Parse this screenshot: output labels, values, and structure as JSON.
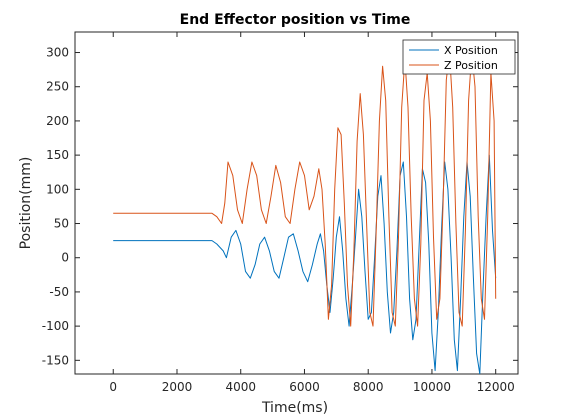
{
  "chart_data": {
    "type": "line",
    "title": "End Effector position vs Time",
    "xlabel": "Time(ms)",
    "ylabel": "Position(mm)",
    "xlim": [
      -1200,
      12700
    ],
    "ylim": [
      -170,
      330
    ],
    "xticks": [
      0,
      2000,
      4000,
      6000,
      8000,
      10000,
      12000
    ],
    "yticks": [
      -150,
      -100,
      -50,
      0,
      50,
      100,
      150,
      200,
      250,
      300
    ],
    "grid": false,
    "legend_position": "top-right",
    "series": [
      {
        "name": "X Position",
        "color": "#0072BD",
        "x": [
          0,
          3100,
          3250,
          3450,
          3550,
          3700,
          3850,
          4000,
          4150,
          4300,
          4450,
          4600,
          4750,
          4900,
          5050,
          5200,
          5350,
          5500,
          5650,
          5800,
          5950,
          6100,
          6250,
          6400,
          6500,
          6600,
          6700,
          6800,
          6900,
          7000,
          7100,
          7200,
          7300,
          7400,
          7500,
          7600,
          7700,
          7800,
          7900,
          8000,
          8100,
          8200,
          8300,
          8400,
          8500,
          8600,
          8700,
          8800,
          8900,
          9000,
          9100,
          9200,
          9300,
          9400,
          9500,
          9600,
          9700,
          9800,
          9900,
          10000,
          10100,
          10200,
          10300,
          10400,
          10500,
          10600,
          10700,
          10800,
          10900,
          11000,
          11100,
          11200,
          11300,
          11400,
          11500,
          11600,
          11700,
          11800,
          11900,
          12000
        ],
        "y": [
          25,
          25,
          20,
          10,
          0,
          30,
          40,
          20,
          -20,
          -30,
          -10,
          20,
          30,
          10,
          -20,
          -30,
          0,
          30,
          35,
          10,
          -20,
          -35,
          -10,
          20,
          35,
          10,
          -40,
          -80,
          -30,
          30,
          60,
          10,
          -60,
          -100,
          -40,
          30,
          100,
          60,
          -20,
          -90,
          -80,
          0,
          90,
          120,
          50,
          -50,
          -110,
          -80,
          10,
          120,
          140,
          60,
          -60,
          -120,
          -90,
          20,
          130,
          110,
          20,
          -110,
          -165,
          -80,
          40,
          140,
          100,
          0,
          -120,
          -165,
          -60,
          60,
          140,
          90,
          -30,
          -140,
          -170,
          -50,
          60,
          150,
          40,
          -30
        ]
      },
      {
        "name": "Z Position",
        "color": "#D95319",
        "x": [
          0,
          3100,
          3250,
          3400,
          3500,
          3600,
          3750,
          3900,
          4050,
          4200,
          4350,
          4500,
          4650,
          4800,
          4950,
          5100,
          5250,
          5400,
          5550,
          5700,
          5850,
          6000,
          6150,
          6300,
          6450,
          6550,
          6650,
          6750,
          6850,
          6950,
          7050,
          7150,
          7250,
          7350,
          7450,
          7550,
          7650,
          7750,
          7850,
          7950,
          8050,
          8150,
          8250,
          8350,
          8450,
          8550,
          8650,
          8750,
          8850,
          8950,
          9050,
          9150,
          9250,
          9350,
          9450,
          9550,
          9650,
          9750,
          9850,
          9950,
          10050,
          10150,
          10250,
          10350,
          10450,
          10550,
          10650,
          10750,
          10850,
          10950,
          11050,
          11150,
          11250,
          11350,
          11450,
          11550,
          11650,
          11750,
          11850,
          11950,
          12000
        ],
        "y": [
          65,
          65,
          60,
          50,
          80,
          140,
          120,
          70,
          50,
          100,
          140,
          120,
          70,
          50,
          90,
          135,
          110,
          60,
          50,
          100,
          140,
          120,
          70,
          90,
          130,
          100,
          20,
          -90,
          -40,
          100,
          190,
          180,
          80,
          -40,
          -100,
          10,
          170,
          240,
          180,
          50,
          -80,
          -100,
          40,
          200,
          280,
          230,
          60,
          -80,
          -100,
          30,
          220,
          290,
          220,
          60,
          -60,
          -100,
          20,
          230,
          270,
          200,
          30,
          -90,
          -60,
          80,
          260,
          300,
          220,
          50,
          -80,
          -100,
          40,
          230,
          300,
          250,
          60,
          -60,
          -90,
          60,
          270,
          200,
          -60
        ]
      }
    ]
  }
}
